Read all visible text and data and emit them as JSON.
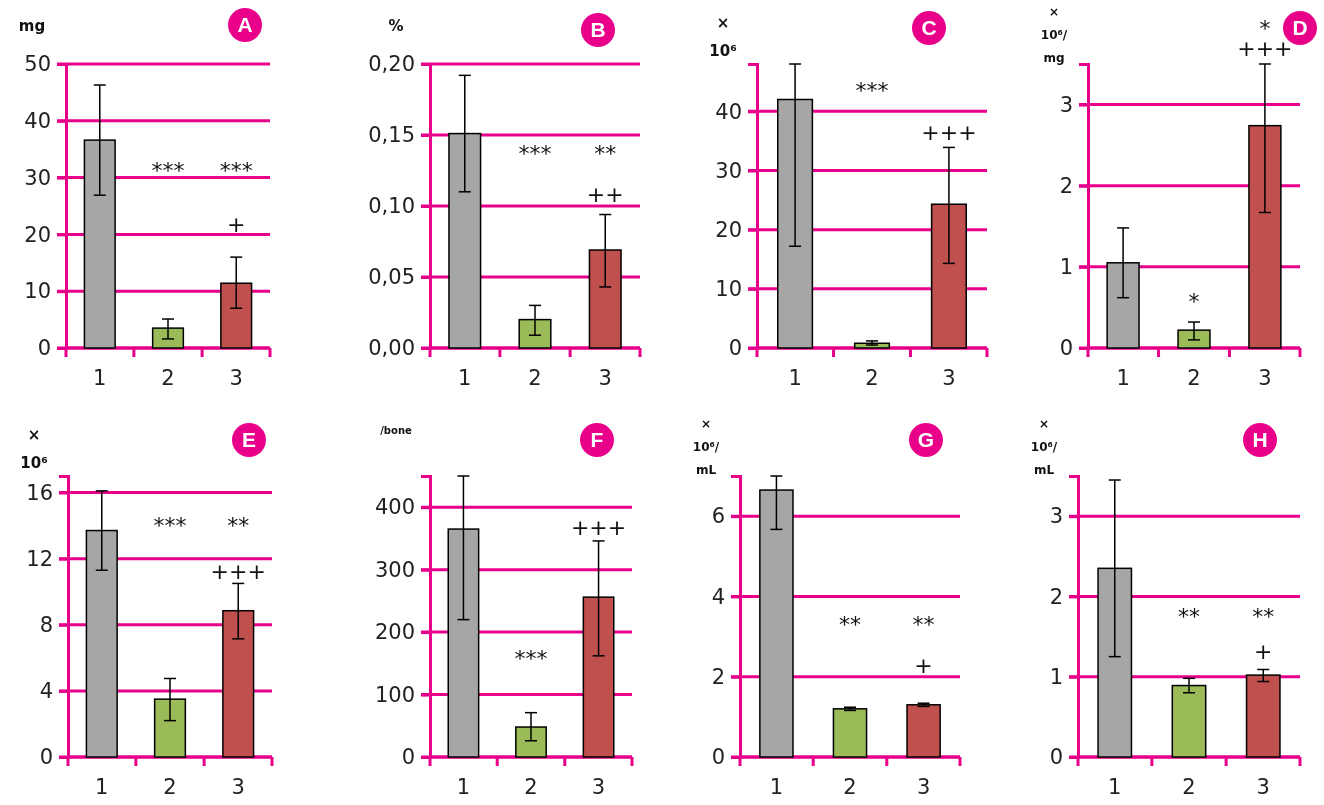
{
  "chart_data": [
    {
      "type": "bar",
      "title": "A",
      "ylabel": "mg",
      "categories": [
        "1",
        "2",
        "3"
      ],
      "values": [
        36.6,
        3.5,
        11.4
      ],
      "colors": [
        "#a6a6a6",
        "#9bbb59",
        "#c0504d"
      ],
      "errors": [
        [
          26.9,
          46.3
        ],
        [
          1.6,
          5.1
        ],
        [
          7.0,
          16.0
        ]
      ],
      "ylim": [
        0,
        50
      ],
      "yticks": [
        0,
        10,
        20,
        30,
        40,
        50
      ],
      "grid": "y",
      "annotations": [
        "***",
        "***",
        "+"
      ]
    },
    {
      "type": "bar",
      "title": "B",
      "ylabel": "%",
      "categories": [
        "1",
        "2",
        "3"
      ],
      "values": [
        0.151,
        0.02,
        0.069
      ],
      "colors": [
        "#a6a6a6",
        "#9bbb59",
        "#c0504d"
      ],
      "errors": [
        [
          0.11,
          0.192
        ],
        [
          0.009,
          0.03
        ],
        [
          0.043,
          0.094
        ]
      ],
      "ylim": [
        0,
        0.2
      ],
      "yticks": [
        {
          "value": 0,
          "label": "0,00"
        },
        {
          "value": 0.05,
          "label": "0,05"
        },
        {
          "value": 0.1,
          "label": "0,10"
        },
        {
          "value": 0.15,
          "label": "0,15"
        },
        {
          "value": 0.2,
          "label": "0,20"
        }
      ],
      "grid": "y",
      "annotations": [
        "***",
        "**",
        "++"
      ]
    },
    {
      "type": "bar",
      "title": "C",
      "ylabel": "×\n10⁶",
      "categories": [
        "1",
        "2",
        "3"
      ],
      "values": [
        42,
        0.8,
        24.3
      ],
      "colors": [
        "#a6a6a6",
        "#9bbb59",
        "#c0504d"
      ],
      "errors": [
        [
          17.2,
          48
        ],
        [
          0.5,
          1.2
        ],
        [
          14.3,
          33.9
        ]
      ],
      "ylim": [
        0,
        48
      ],
      "yticks": [
        0,
        10,
        20,
        30,
        40
      ],
      "grid": "y",
      "annotations": [
        "***",
        "+++"
      ]
    },
    {
      "type": "bar",
      "title": "D",
      "ylabel": "×\n10⁶/\nmg",
      "categories": [
        "1",
        "2",
        "3"
      ],
      "values": [
        1.05,
        0.22,
        2.74
      ],
      "colors": [
        "#a6a6a6",
        "#9bbb59",
        "#c0504d"
      ],
      "errors": [
        [
          0.62,
          1.48
        ],
        [
          0.1,
          0.32
        ],
        [
          1.67,
          3.5
        ]
      ],
      "ylim": [
        0,
        3.5
      ],
      "yticks": [
        0,
        1,
        2,
        3
      ],
      "grid": "y",
      "annotations": [
        "*",
        "*",
        "+++"
      ]
    },
    {
      "type": "bar",
      "title": "E",
      "ylabel": "×\n10⁶",
      "categories": [
        "1",
        "2",
        "3"
      ],
      "values": [
        13.7,
        3.5,
        8.85
      ],
      "colors": [
        "#a6a6a6",
        "#9bbb59",
        "#c0504d"
      ],
      "errors": [
        [
          11.3,
          16.1
        ],
        [
          2.2,
          4.75
        ],
        [
          7.15,
          10.5
        ]
      ],
      "ylim": [
        0,
        17
      ],
      "yticks": [
        0,
        4,
        8,
        12,
        16
      ],
      "grid": "y",
      "annotations": [
        "***",
        "**",
        "+++"
      ]
    },
    {
      "type": "bar",
      "title": "F",
      "ylabel": "/bone",
      "categories": [
        "1",
        "2",
        "3"
      ],
      "values": [
        365,
        48,
        256
      ],
      "colors": [
        "#a6a6a6",
        "#9bbb59",
        "#c0504d"
      ],
      "errors": [
        [
          220,
          450
        ],
        [
          26,
          71
        ],
        [
          162,
          346
        ]
      ],
      "ylim": [
        0,
        450
      ],
      "yticks": [
        0,
        100,
        200,
        300,
        400
      ],
      "grid": "y",
      "annotations": [
        "***",
        "+++"
      ]
    },
    {
      "type": "bar",
      "title": "G",
      "ylabel": "×\n10⁶/\nmL",
      "categories": [
        "1",
        "2",
        "3"
      ],
      "values": [
        6.65,
        1.2,
        1.3
      ],
      "colors": [
        "#a6a6a6",
        "#9bbb59",
        "#c0504d"
      ],
      "errors": [
        [
          5.67,
          7
        ],
        [
          1.16,
          1.24
        ],
        [
          1.26,
          1.34
        ]
      ],
      "ylim": [
        0,
        7
      ],
      "yticks": [
        0,
        2,
        4,
        6
      ],
      "grid": "y",
      "annotations": [
        "**",
        "**",
        "+"
      ]
    },
    {
      "type": "bar",
      "title": "H",
      "ylabel": "×\n10⁶/\nmL",
      "categories": [
        "1",
        "2",
        "3"
      ],
      "values": [
        2.35,
        0.89,
        1.02
      ],
      "colors": [
        "#a6a6a6",
        "#9bbb59",
        "#c0504d"
      ],
      "errors": [
        [
          1.25,
          3.45
        ],
        [
          0.8,
          0.98
        ],
        [
          0.94,
          1.09
        ]
      ],
      "ylim": [
        0,
        3.5
      ],
      "yticks": [
        0,
        1,
        2,
        3
      ],
      "grid": "y",
      "annotations": [
        "**",
        "**",
        "+"
      ]
    }
  ]
}
